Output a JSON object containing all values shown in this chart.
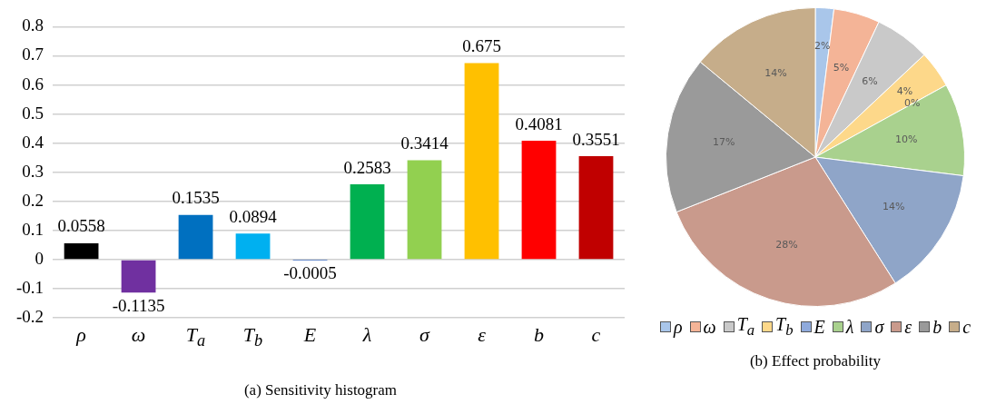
{
  "chart_data": [
    {
      "type": "bar",
      "title": "(a) Sensitivity histogram",
      "categories": [
        "ρ",
        "ω",
        "T$_{a}$",
        "T$_{b}$",
        "E",
        "λ",
        "σ",
        "ε",
        "b",
        "c"
      ],
      "values": [
        0.0558,
        -0.1135,
        0.1535,
        0.0894,
        -0.0005,
        0.2583,
        0.3414,
        0.675,
        0.4081,
        0.3551
      ],
      "colors": [
        "#000000",
        "#7030a0",
        "#0070c0",
        "#00b0f0",
        "#4472c4",
        "#00b050",
        "#92d050",
        "#ffc000",
        "#ff0000",
        "#c00000"
      ],
      "ylim": [
        -0.2,
        0.8
      ],
      "yticks": [
        -0.2,
        -0.1,
        0,
        0.1,
        0.2,
        0.3,
        0.4,
        0.5,
        0.6,
        0.7,
        0.8
      ],
      "grid": "y",
      "data_labels": true,
      "legend": false
    },
    {
      "type": "pie",
      "title": "(b) Effect probability",
      "categories": [
        "ρ",
        "ω",
        "T$_{a}$",
        "T$_{b}$",
        "E",
        "λ",
        "σ",
        "ε",
        "b",
        "c"
      ],
      "values": [
        2,
        5,
        6,
        4,
        0,
        10,
        14,
        28,
        17,
        14
      ],
      "value_labels": [
        "2%",
        "5%",
        "6%",
        "4%",
        "0%",
        "10%",
        "14%",
        "28%",
        "17%",
        "14%"
      ],
      "colors": [
        "#a9c6ea",
        "#f4b497",
        "#c9c9c9",
        "#fdd88a",
        "#8faadc",
        "#a9d18e",
        "#8fa5c8",
        "#c99a8c",
        "#9a9a9a",
        "#c6ad8a"
      ],
      "legend": "bottom"
    }
  ]
}
